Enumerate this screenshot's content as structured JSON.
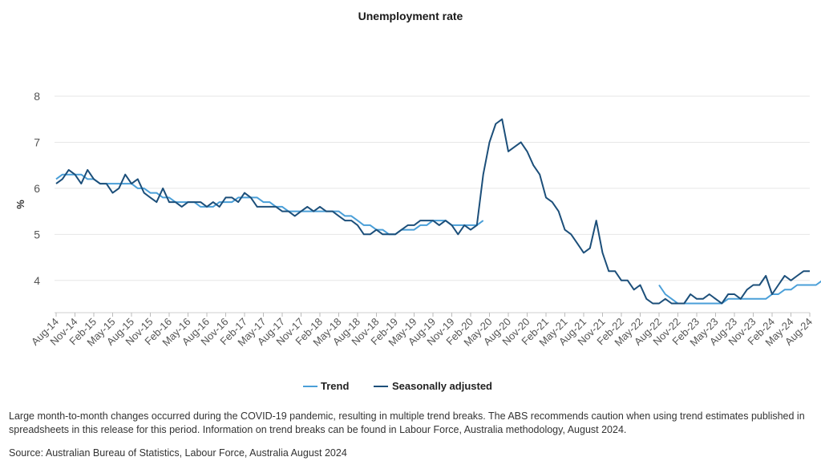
{
  "chart_data": {
    "type": "line",
    "title": "Unemployment rate",
    "ylabel": "%",
    "xlabel": "",
    "ylim": [
      3.3,
      8
    ],
    "yticks": [
      4,
      5,
      6,
      7,
      8
    ],
    "grid": true,
    "legend_position": "bottom-center",
    "start": "Aug-14",
    "x_tick_labels": [
      "Aug-14",
      "Nov-14",
      "Feb-15",
      "May-15",
      "Aug-15",
      "Nov-15",
      "Feb-16",
      "May-16",
      "Aug-16",
      "Nov-16",
      "Feb-17",
      "May-17",
      "Aug-17",
      "Nov-17",
      "Feb-18",
      "May-18",
      "Aug-18",
      "Nov-18",
      "Feb-19",
      "May-19",
      "Aug-19",
      "Nov-19",
      "Feb-20",
      "May-20",
      "Aug-20",
      "Nov-20",
      "Feb-21",
      "May-21",
      "Aug-21",
      "Nov-21",
      "Feb-22",
      "May-22",
      "Aug-22",
      "Nov-22",
      "Feb-23",
      "May-23",
      "Aug-23",
      "Nov-23",
      "Feb-24",
      "May-24",
      "Aug-24"
    ],
    "series": [
      {
        "name": "Trend",
        "color": "#4a9fd8",
        "values": [
          6.2,
          6.3,
          6.3,
          6.3,
          6.3,
          6.2,
          6.2,
          6.1,
          6.1,
          6.1,
          6.1,
          6.1,
          6.1,
          6.0,
          6.0,
          5.9,
          5.9,
          5.8,
          5.8,
          5.7,
          5.7,
          5.7,
          5.7,
          5.6,
          5.6,
          5.6,
          5.7,
          5.7,
          5.7,
          5.8,
          5.8,
          5.8,
          5.8,
          5.7,
          5.7,
          5.6,
          5.6,
          5.5,
          5.5,
          5.5,
          5.5,
          5.5,
          5.5,
          5.5,
          5.5,
          5.5,
          5.4,
          5.4,
          5.3,
          5.2,
          5.2,
          5.1,
          5.1,
          5.0,
          5.0,
          5.1,
          5.1,
          5.1,
          5.2,
          5.2,
          5.3,
          5.3,
          5.3,
          5.2,
          5.2,
          5.2,
          5.2,
          5.2,
          5.3,
          null,
          null,
          null,
          null,
          null,
          null,
          null,
          null,
          null,
          null,
          null,
          null,
          null,
          null,
          null,
          null,
          null,
          null,
          null,
          null,
          null,
          null,
          null,
          null,
          null,
          null,
          null,
          3.9,
          3.7,
          3.6,
          3.5,
          3.5,
          3.5,
          3.5,
          3.5,
          3.5,
          3.5,
          3.5,
          3.6,
          3.6,
          3.6,
          3.6,
          3.6,
          3.6,
          3.6,
          3.7,
          3.7,
          3.8,
          3.8,
          3.9,
          3.9,
          3.9,
          3.9,
          4.0,
          4.0,
          4.0,
          4.0,
          4.1,
          4.1,
          4.1
        ]
      },
      {
        "name": "Seasonally adjusted",
        "color": "#1c4f7a",
        "values": [
          6.1,
          6.2,
          6.4,
          6.3,
          6.1,
          6.4,
          6.2,
          6.1,
          6.1,
          5.9,
          6.0,
          6.3,
          6.1,
          6.2,
          5.9,
          5.8,
          5.7,
          6.0,
          5.7,
          5.7,
          5.6,
          5.7,
          5.7,
          5.7,
          5.6,
          5.7,
          5.6,
          5.8,
          5.8,
          5.7,
          5.9,
          5.8,
          5.6,
          5.6,
          5.6,
          5.6,
          5.5,
          5.5,
          5.4,
          5.5,
          5.6,
          5.5,
          5.6,
          5.5,
          5.5,
          5.4,
          5.3,
          5.3,
          5.2,
          5.0,
          5.0,
          5.1,
          5.0,
          5.0,
          5.0,
          5.1,
          5.2,
          5.2,
          5.3,
          5.3,
          5.3,
          5.2,
          5.3,
          5.2,
          5.0,
          5.2,
          5.1,
          5.2,
          6.3,
          7.0,
          7.4,
          7.5,
          6.8,
          6.9,
          7.0,
          6.8,
          6.5,
          6.3,
          5.8,
          5.7,
          5.5,
          5.1,
          5.0,
          4.8,
          4.6,
          4.7,
          5.3,
          4.6,
          4.2,
          4.2,
          4.0,
          4.0,
          3.8,
          3.9,
          3.6,
          3.5,
          3.5,
          3.6,
          3.5,
          3.5,
          3.5,
          3.7,
          3.6,
          3.6,
          3.7,
          3.6,
          3.5,
          3.7,
          3.7,
          3.6,
          3.8,
          3.9,
          3.9,
          4.1,
          3.7,
          3.9,
          4.1,
          4.0,
          4.1,
          4.2,
          4.2
        ]
      }
    ]
  },
  "note": "Large month-to-month changes occurred during the COVID-19 pandemic, resulting in multiple trend breaks. The ABS recommends caution when using trend estimates published in spreadsheets in this release for this period. Information on trend breaks can be found in Labour Force, Australia methodology, August 2024.",
  "source": "Source: Australian Bureau of Statistics, Labour Force, Australia August 2024"
}
